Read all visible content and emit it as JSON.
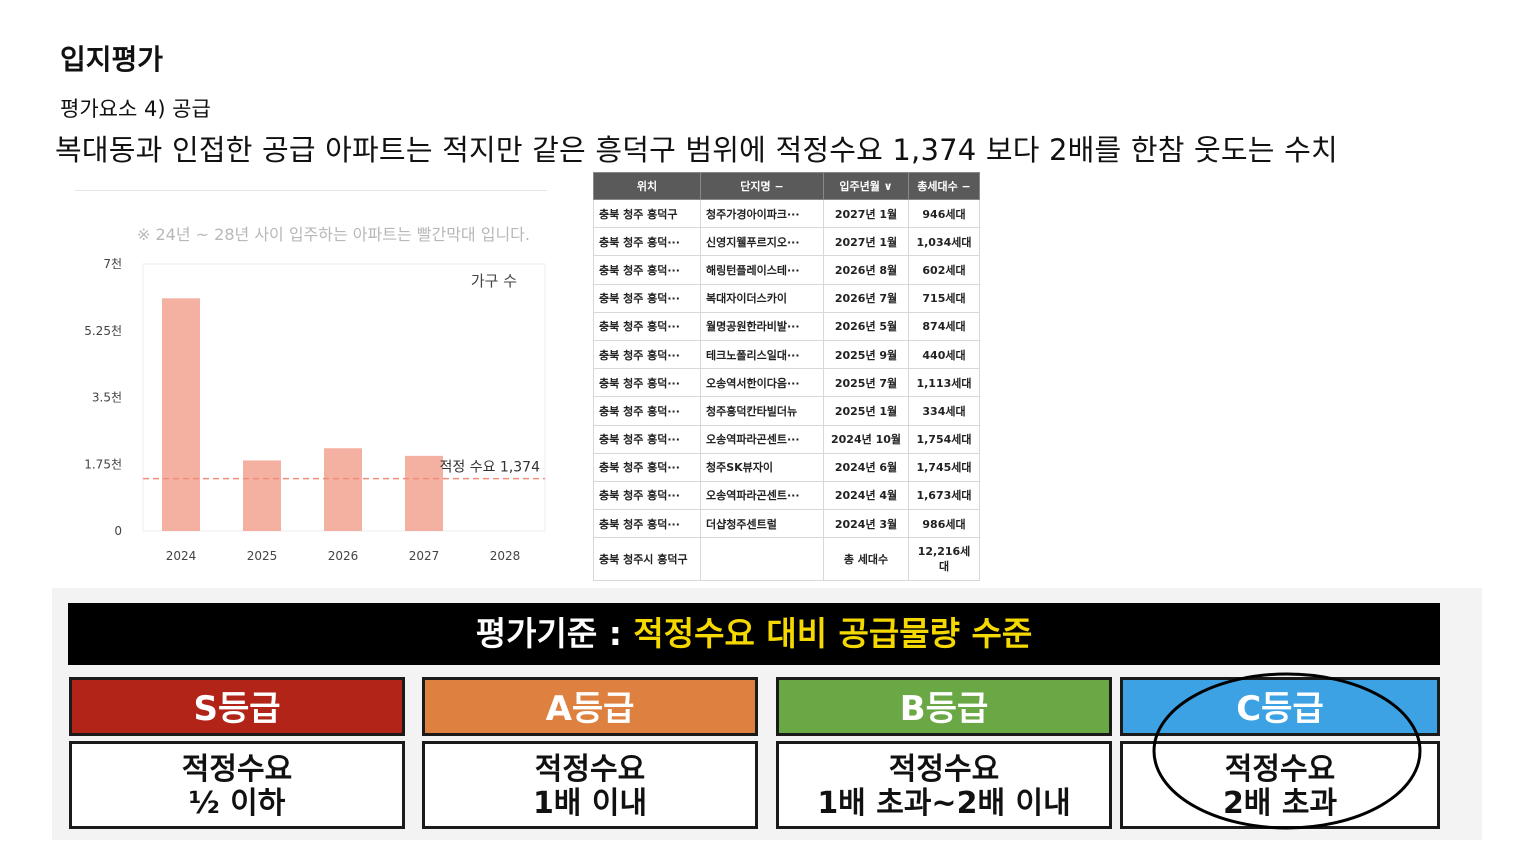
{
  "page": {
    "title": "입지평가",
    "subtitle": "평가요소 4) 공급",
    "headline": "복대동과 인접한 공급 아파트는 적지만 같은 흥덕구 범위에 적정수요 1,374 보다 2배를 한참 웃도는 수치"
  },
  "chart_note": "※ 24년 ~ 28년 사이 입주하는 아파트는 빨간막대 입니다.",
  "chart_data": {
    "type": "bar",
    "categories": [
      "2024",
      "2025",
      "2026",
      "2027",
      "2028"
    ],
    "values": [
      6100,
      1850,
      2170,
      1970,
      0
    ],
    "ylim": [
      0,
      7000
    ],
    "yticks": [
      {
        "v": 0,
        "label": "0"
      },
      {
        "v": 1750,
        "label": "1.75천"
      },
      {
        "v": 3500,
        "label": "3.5천"
      },
      {
        "v": 5250,
        "label": "5.25천"
      },
      {
        "v": 7000,
        "label": "7천"
      }
    ],
    "legend": "가구 수",
    "reference_line": {
      "value": 1374,
      "label": "적정 수요 1,374"
    },
    "bar_color": "#f4b1a2",
    "line_color": "#f28b7a",
    "grid": false
  },
  "table": {
    "headers": [
      "위치",
      "단지명 −",
      "입주년월 ∨",
      "총세대수 −"
    ],
    "rows": [
      [
        "충북 청주 흥덕구",
        "청주가경아이파크···",
        "2027년 1월",
        "946세대"
      ],
      [
        "충북 청주 흥덕···",
        "신영지웰푸르지오···",
        "2027년 1월",
        "1,034세대"
      ],
      [
        "충북 청주 흥덕···",
        "해링턴플레이스테···",
        "2026년 8월",
        "602세대"
      ],
      [
        "충북 청주 흥덕···",
        "복대자이더스카이",
        "2026년 7월",
        "715세대"
      ],
      [
        "충북 청주 흥덕···",
        "월명공원한라비발···",
        "2026년 5월",
        "874세대"
      ],
      [
        "충북 청주 흥덕···",
        "테크노폴리스일대···",
        "2025년 9월",
        "440세대"
      ],
      [
        "충북 청주 흥덕···",
        "오송역서한이다음···",
        "2025년 7월",
        "1,113세대"
      ],
      [
        "충북 청주 흥덕···",
        "청주흥덕칸타빌더뉴",
        "2025년 1월",
        "334세대"
      ],
      [
        "충북 청주 흥덕···",
        "오송역파라곤센트···",
        "2024년 10월",
        "1,754세대"
      ],
      [
        "충북 청주 흥덕···",
        "청주SK뷰자이",
        "2024년 6월",
        "1,745세대"
      ],
      [
        "충북 청주 흥덕···",
        "오송역파라곤센트···",
        "2024년 4월",
        "1,673세대"
      ],
      [
        "충북 청주 흥덕···",
        "더샵청주센트럴",
        "2024년 3월",
        "986세대"
      ]
    ],
    "total": [
      "충북 청주시 흥덕구",
      "",
      "총 세대수",
      "12,216세대"
    ]
  },
  "criteria": {
    "label_prefix": "평가기준 : ",
    "label_highlight": "적정수요 대비 공급물량 수준",
    "grades": [
      {
        "name": "S등급",
        "line1": "적정수요",
        "line2": "½ 이하",
        "color": "#b22418"
      },
      {
        "name": "A등급",
        "line1": "적정수요",
        "line2": "1배 이내",
        "color": "#de803f"
      },
      {
        "name": "B등급",
        "line1": "적정수요",
        "line2": "1배 초과~2배 이내",
        "color": "#6aa745"
      },
      {
        "name": "C등급",
        "line1": "적정수요",
        "line2": "2배 초과",
        "color": "#3ca2e4"
      }
    ]
  }
}
